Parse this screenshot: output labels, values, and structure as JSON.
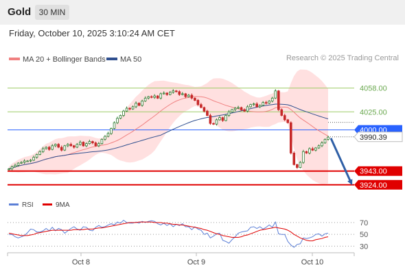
{
  "header": {
    "symbol": "Gold",
    "timeframe": "30 MIN"
  },
  "datetime": "Friday, October 10, 2025 3:10:24 AM CET",
  "credit": "Research © 2025 Trading Central",
  "colors": {
    "ma20": "#f08080",
    "ma50": "#2f4f8f",
    "bullish": "#2e7d32",
    "bearish": "#c62828",
    "pivot": "#2962ff",
    "support": "#e00000",
    "resistance": "#9ccc65",
    "rsi": "#5b7fd6",
    "rsi_ma": "#e00000",
    "band": "#ffd6d6",
    "arrow": "#2f5fa6"
  },
  "chart_data": [
    {
      "type": "candlestick",
      "legend": [
        {
          "label": "MA 20 + Bollinger Bands",
          "color": "#f08080"
        },
        {
          "label": "MA 50",
          "color": "#2f4f8f"
        }
      ],
      "x_ticks": [
        "Oct 8",
        "Oct 9",
        "Oct 10"
      ],
      "ylim": [
        3920,
        4067
      ],
      "last_price": 3990.39,
      "levels": [
        {
          "value": 4058.0,
          "label": "4058.00",
          "kind": "resistance"
        },
        {
          "value": 4025.0,
          "label": "4025.00",
          "kind": "resistance"
        },
        {
          "value": 4000.0,
          "label": "4000.00",
          "kind": "pivot"
        },
        {
          "value": 3943.0,
          "label": "3943.00",
          "kind": "support"
        },
        {
          "value": 3924.0,
          "label": "3924.00",
          "kind": "support"
        }
      ],
      "forecast": {
        "from": 3990.39,
        "to": 3924.0,
        "direction": "down"
      },
      "close": [
        3946,
        3949,
        3951,
        3954,
        3955,
        3957,
        3957,
        3958,
        3962,
        3966,
        3970,
        3974,
        3976,
        3973,
        3978,
        3980,
        3976,
        3972,
        3978,
        3980,
        3978,
        3976,
        3980,
        3983,
        3978,
        3981,
        3984,
        3982,
        3978,
        3981,
        3987,
        3991,
        3995,
        4002,
        4010,
        4016,
        4020,
        4026,
        4030,
        4029,
        4032,
        4037,
        4034,
        4040,
        4044,
        4046,
        4045,
        4047,
        4044,
        4050,
        4051,
        4049,
        4052,
        4054,
        4053,
        4049,
        4050,
        4046,
        4048,
        4044,
        4041,
        4035,
        4031,
        4026,
        4020,
        4009,
        4008,
        4014,
        4017,
        4013,
        4020,
        4025,
        4028,
        4030,
        4031,
        4028,
        4026,
        4032,
        4035,
        4036,
        4032,
        4034,
        4038,
        4037,
        4040,
        4044,
        4054,
        4028,
        4020,
        4014,
        4010,
        3968,
        3952,
        3948,
        3955,
        3970,
        3968,
        3974,
        3972,
        3975,
        3978,
        3982,
        3987,
        3990
      ]
    },
    {
      "type": "line",
      "legend": [
        {
          "label": "RSI",
          "color": "#5b7fd6"
        },
        {
          "label": "9MA",
          "color": "#e00000"
        }
      ],
      "y_ticks": [
        70,
        50,
        30
      ],
      "ylim": [
        20,
        85
      ],
      "rsi": [
        50,
        50,
        46,
        44,
        46,
        48,
        53,
        59,
        58,
        54,
        54,
        56,
        60,
        56,
        62,
        56,
        60,
        58,
        52,
        56,
        60,
        63,
        59,
        57,
        63,
        62,
        57,
        56,
        62,
        65,
        62,
        63,
        66,
        68,
        66,
        71,
        69,
        74,
        70,
        69,
        69,
        71,
        69,
        72,
        70,
        72,
        73,
        72,
        68,
        66,
        69,
        65,
        68,
        63,
        67,
        65,
        68,
        63,
        63,
        58,
        63,
        59,
        57,
        50,
        52,
        44,
        47,
        51,
        52,
        40,
        38,
        35,
        41,
        46,
        52,
        54,
        55,
        56,
        62,
        63,
        60,
        63,
        59,
        62,
        66,
        62,
        71,
        51,
        50,
        50,
        38,
        32,
        28,
        33,
        34,
        44,
        43,
        44,
        46,
        50,
        51,
        47,
        51,
        52
      ],
      "ma9": [
        52,
        51,
        50,
        49,
        48,
        48,
        48,
        49,
        50,
        52,
        53,
        54,
        55,
        56,
        57,
        57,
        57,
        57,
        57,
        57,
        57,
        58,
        58,
        58,
        58,
        59,
        59,
        59,
        60,
        61,
        61,
        62,
        63,
        64,
        65,
        66,
        67,
        68,
        69,
        70,
        70,
        70,
        71,
        71,
        71,
        71,
        71,
        70,
        70,
        70,
        69,
        69,
        68,
        67,
        67,
        66,
        66,
        65,
        64,
        63,
        62,
        61,
        60,
        58,
        57,
        55,
        53,
        51,
        50,
        48,
        47,
        46,
        45,
        45,
        45,
        46,
        48,
        49,
        51,
        53,
        55,
        57,
        58,
        59,
        60,
        61,
        62,
        61,
        60,
        59,
        57,
        54,
        50,
        47,
        44,
        42,
        40,
        39,
        39,
        41,
        42,
        43,
        45,
        46
      ]
    }
  ]
}
